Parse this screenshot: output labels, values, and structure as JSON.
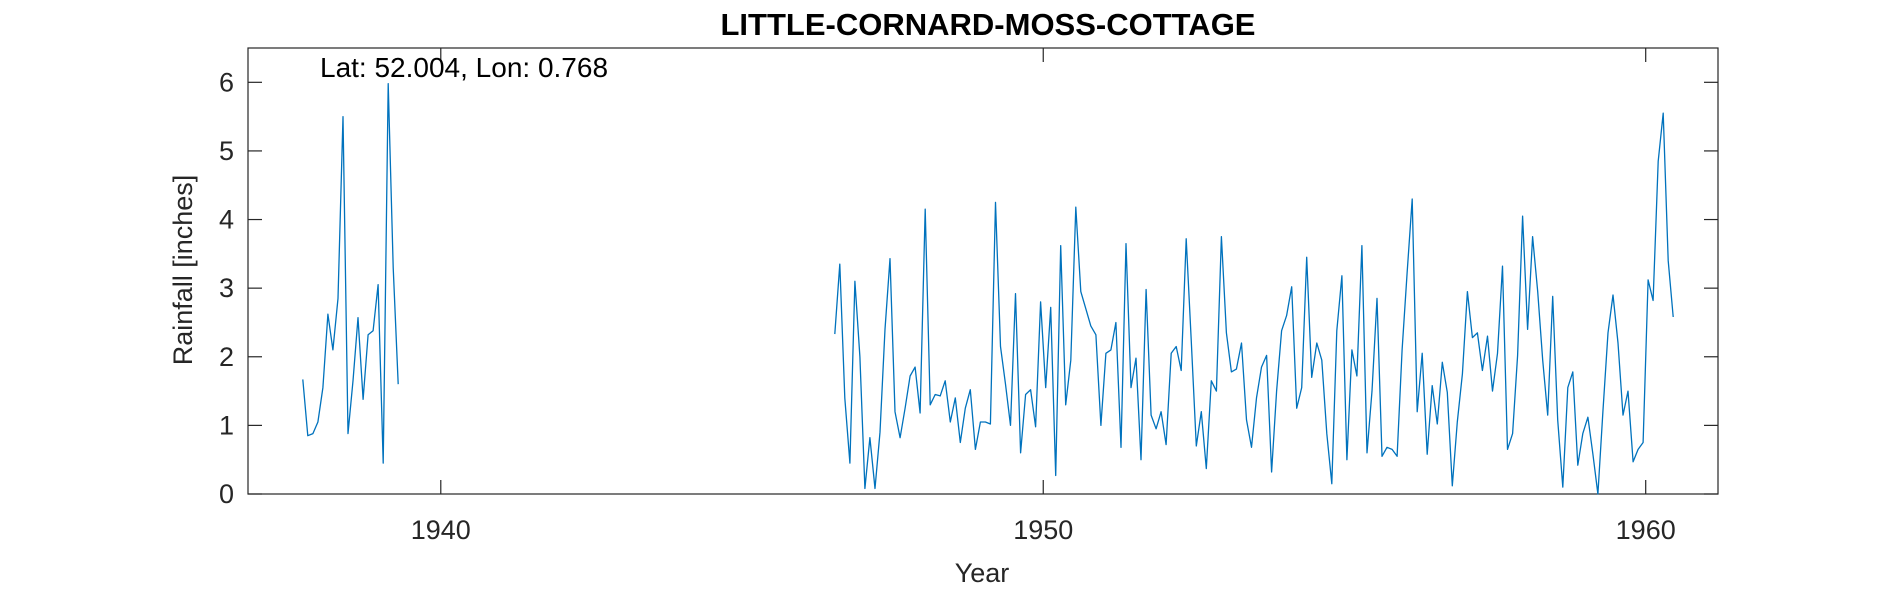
{
  "chart_data": {
    "type": "line",
    "title": "LITTLE-CORNARD-MOSS-COTTAGE",
    "xlabel": "Year",
    "ylabel": "Rainfall [inches]",
    "annotation": "Lat: 52.004, Lon: 0.768",
    "xlim": [
      1936.8,
      1961.2
    ],
    "ylim": [
      0,
      6.5
    ],
    "xticks": [
      1940,
      1950,
      1960
    ],
    "yticks": [
      0,
      1,
      2,
      3,
      4,
      5,
      6
    ],
    "grid": false,
    "colors": {
      "line": "#0072BD",
      "axis": "#262626"
    },
    "series": [
      {
        "segments": [
          {
            "x_start": 1937.71,
            "x_step": 0.0833333,
            "values": [
              1.67,
              0.85,
              0.88,
              1.05,
              1.55,
              2.62,
              2.1,
              2.85,
              5.5,
              0.88,
              1.65,
              2.57,
              1.38,
              2.32,
              2.38,
              3.05,
              0.45,
              5.98,
              3.3,
              1.6
            ]
          },
          {
            "x_start": 1946.54,
            "x_step": 0.0833333,
            "values": [
              2.33,
              3.35,
              1.4,
              0.45,
              3.1,
              2.0,
              0.08,
              0.82,
              0.08,
              0.9,
              2.4,
              3.43,
              1.2,
              0.82,
              1.25,
              1.72,
              1.85,
              1.18,
              4.15,
              1.3,
              1.45,
              1.43,
              1.65,
              1.05,
              1.4,
              0.75,
              1.25,
              1.52,
              0.65,
              1.05,
              1.05,
              1.02,
              4.25,
              2.15,
              1.6,
              1.0,
              2.92,
              0.6,
              1.45,
              1.52,
              0.98,
              2.8,
              1.55,
              2.72,
              0.27,
              3.62,
              1.3,
              1.95,
              4.18,
              2.95,
              2.7,
              2.45,
              2.32,
              1.0,
              2.05,
              2.1,
              2.5,
              0.68,
              3.65,
              1.55,
              1.98,
              0.5,
              2.98,
              1.15,
              0.95,
              1.2,
              0.72,
              2.05,
              2.15,
              1.8,
              3.72,
              2.25,
              0.7,
              1.2,
              0.37,
              1.65,
              1.5,
              3.75,
              2.35,
              1.78,
              1.82,
              2.2,
              1.08,
              0.68,
              1.4,
              1.85,
              2.02,
              0.32,
              1.5,
              2.38,
              2.6,
              3.02,
              1.25,
              1.55,
              3.45,
              1.7,
              2.2,
              1.95,
              0.88,
              0.15,
              2.38,
              3.18,
              0.5,
              2.1,
              1.72,
              3.62,
              0.6,
              1.5,
              2.85,
              0.55,
              0.68,
              0.65,
              0.55,
              2.1,
              3.22,
              4.3,
              1.2,
              2.05,
              0.58,
              1.58,
              1.02,
              1.92,
              1.48,
              0.12,
              1.05,
              1.75,
              2.95,
              2.28,
              2.35,
              1.8,
              2.3,
              1.5,
              2.05,
              3.32,
              0.65,
              0.88,
              2.02,
              4.05,
              2.4,
              3.75,
              2.95,
              1.95,
              1.15,
              2.88,
              1.08,
              0.1,
              1.55,
              1.78,
              0.42,
              0.88,
              1.12,
              0.58,
              0.0,
              1.2,
              2.35,
              2.9,
              2.2,
              1.15,
              1.5,
              0.47,
              0.65,
              0.75,
              3.12,
              2.82,
              4.85,
              5.55,
              3.4,
              2.58
            ]
          }
        ]
      }
    ]
  }
}
